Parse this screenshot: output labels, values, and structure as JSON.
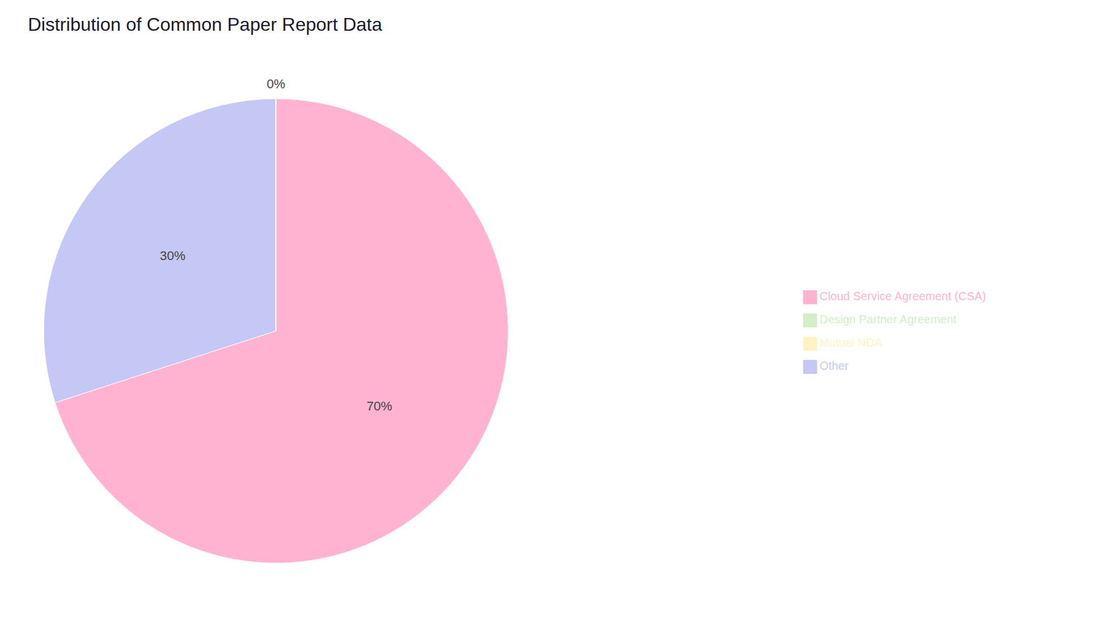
{
  "chart_data": {
    "type": "pie",
    "title": "Distribution of Common Paper Report Data",
    "categories": [
      "Cloud Service Agreement (CSA)",
      "Other",
      "Design Partner Agreement",
      "Mutual NDA"
    ],
    "values": [
      70,
      30,
      0.0001,
      0.0001
    ],
    "value_labels": [
      "70%",
      "30%",
      "0%",
      null
    ],
    "colors": [
      "#FFB3D1",
      "#C5C8F5",
      "#D4EDCA",
      "#FFF3C4"
    ],
    "data_labels": true,
    "legend": "right"
  }
}
